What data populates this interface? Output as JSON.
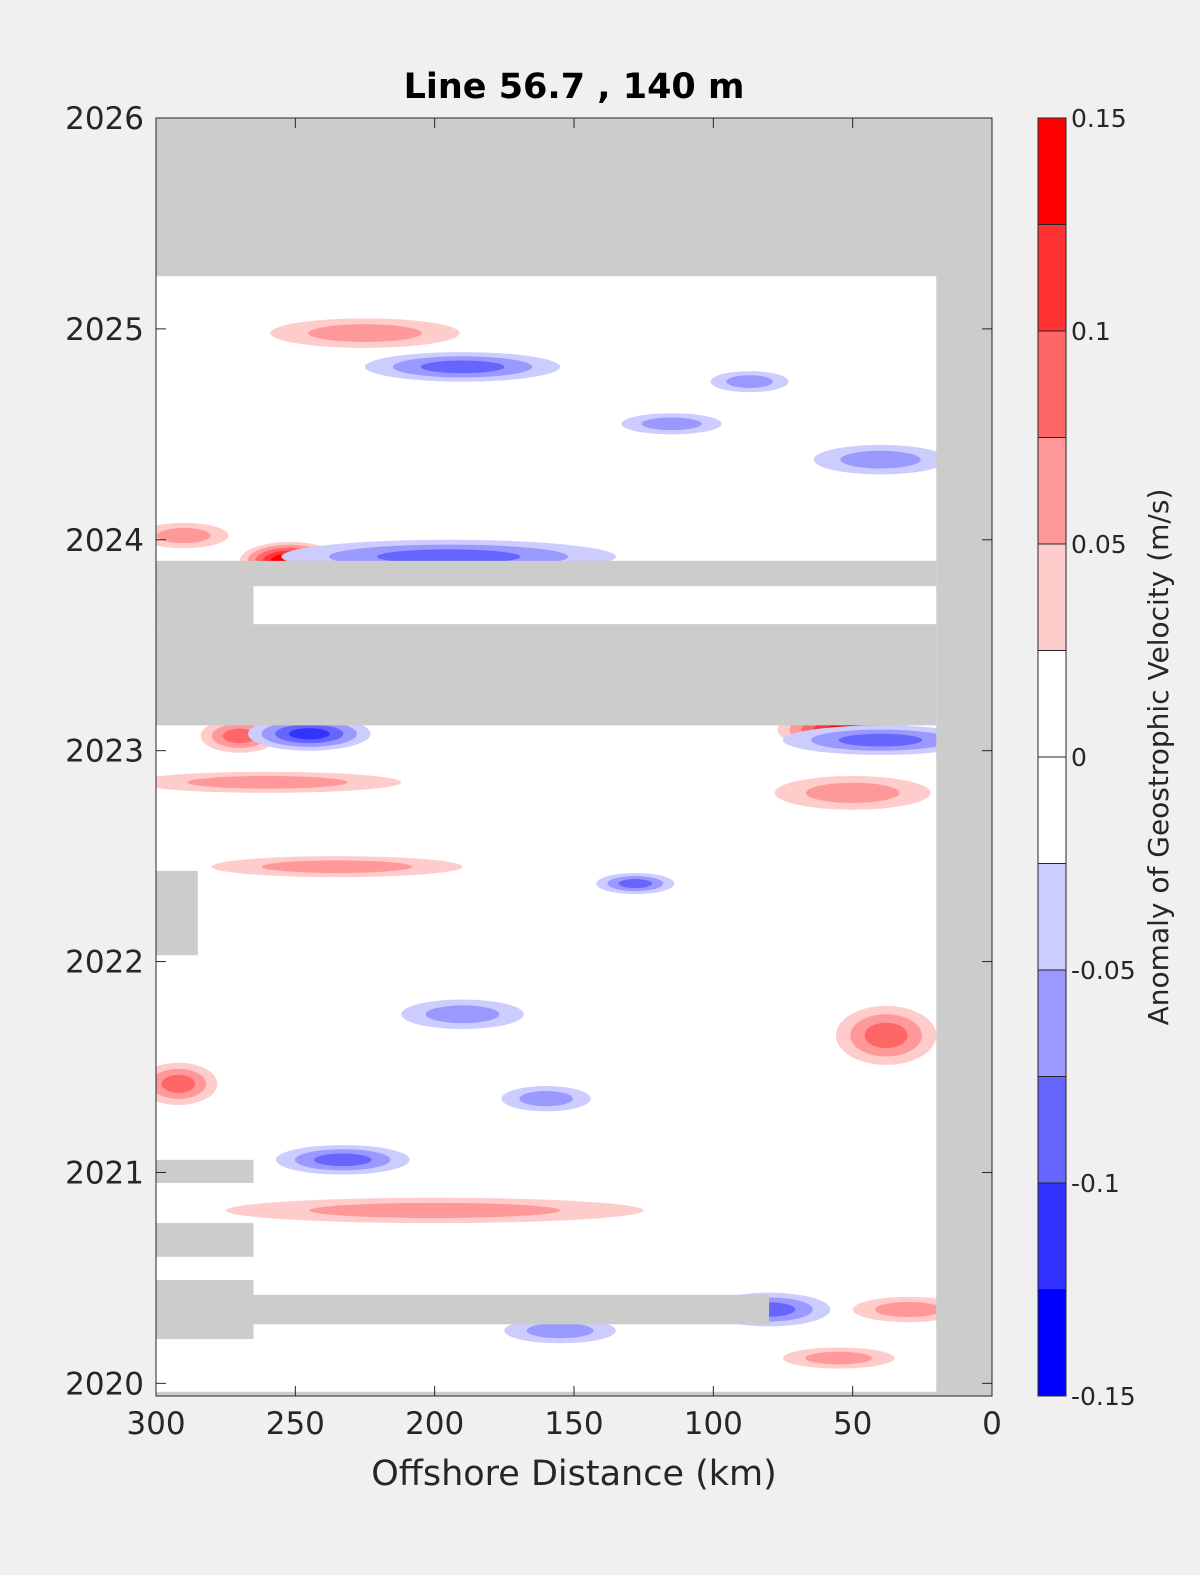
{
  "chart_data": {
    "type": "heatmap",
    "subtype": "filled-contour (Hovmoller diagram)",
    "title": "Line 56.7 , 140 m",
    "xlabel": "Offshore Distance (km)",
    "ylabel": "",
    "xlim": [
      300,
      0
    ],
    "x_reversed": true,
    "ylim": [
      2019.92,
      2026
    ],
    "x_ticks": [
      300,
      250,
      200,
      150,
      100,
      50,
      0
    ],
    "y_ticks": [
      2020,
      2021,
      2022,
      2023,
      2024,
      2025,
      2026
    ],
    "x_tick_labels": [
      "300",
      "250",
      "200",
      "150",
      "100",
      "50",
      "0"
    ],
    "y_tick_labels": [
      "2020",
      "2021",
      "2022",
      "2023",
      "2024",
      "2025",
      "2026"
    ],
    "colorbar": {
      "label": "Anomaly of Geostrophic Velocity (m/s)",
      "range": [
        -0.15,
        0.15
      ],
      "levels": [
        -0.15,
        -0.125,
        -0.1,
        -0.075,
        -0.05,
        -0.025,
        0,
        0.025,
        0.05,
        0.075,
        0.1,
        0.125,
        0.15
      ],
      "colors": [
        "#0000ff",
        "#3333ff",
        "#6666ff",
        "#9999ff",
        "#ccccff",
        "#ffffff",
        "#ffffff",
        "#ffcccc",
        "#ff9999",
        "#ff6666",
        "#ff3333",
        "#ff0000"
      ],
      "tick_values": [
        -0.15,
        -0.1,
        -0.05,
        0,
        0.05,
        0.1,
        0.15
      ],
      "tick_labels": [
        "-0.15",
        "-0.1",
        "-0.05",
        "0",
        "0.05",
        "0.1",
        "0.15"
      ]
    },
    "missing_data_color": "#cccccc",
    "missing_regions": [
      {
        "x0": 300,
        "x1": 0,
        "y0": 2025.25,
        "y1": 2026
      },
      {
        "x0": 20,
        "x1": 0,
        "y0": 2019.92,
        "y1": 2026
      },
      {
        "x0": 300,
        "x1": 20,
        "y0": 2023.12,
        "y1": 2023.6
      },
      {
        "x0": 300,
        "x1": 20,
        "y0": 2023.78,
        "y1": 2023.9
      },
      {
        "x0": 300,
        "x1": 265,
        "y0": 2023.6,
        "y1": 2023.78
      },
      {
        "x0": 300,
        "x1": 285,
        "y0": 2022.03,
        "y1": 2022.43
      },
      {
        "x0": 300,
        "x1": 265,
        "y0": 2020.95,
        "y1": 2021.06
      },
      {
        "x0": 300,
        "x1": 265,
        "y0": 2020.6,
        "y1": 2020.76
      },
      {
        "x0": 300,
        "x1": 265,
        "y0": 2020.21,
        "y1": 2020.49
      },
      {
        "x0": 265,
        "x1": 80,
        "y0": 2020.28,
        "y1": 2020.42
      },
      {
        "x0": 300,
        "x1": 20,
        "y0": 2019.92,
        "y1": 2019.96
      }
    ],
    "anomaly_features": [
      {
        "x": 252,
        "y": 2023.9,
        "rx": 18,
        "ry": 0.09,
        "value": 0.15
      },
      {
        "x": 53,
        "y": 2023.1,
        "rx": 24,
        "ry": 0.1,
        "value": 0.125
      },
      {
        "x": 270,
        "y": 2023.07,
        "rx": 14,
        "ry": 0.08,
        "value": 0.075
      },
      {
        "x": 292,
        "y": 2021.42,
        "rx": 14,
        "ry": 0.1,
        "value": 0.075
      },
      {
        "x": 38,
        "y": 2021.65,
        "rx": 18,
        "ry": 0.14,
        "value": 0.075
      },
      {
        "x": 225,
        "y": 2024.98,
        "rx": 34,
        "ry": 0.07,
        "value": 0.05
      },
      {
        "x": 290,
        "y": 2024.02,
        "rx": 16,
        "ry": 0.06,
        "value": 0.05
      },
      {
        "x": 200,
        "y": 2020.82,
        "rx": 75,
        "ry": 0.06,
        "value": 0.05
      },
      {
        "x": 235,
        "y": 2022.45,
        "rx": 45,
        "ry": 0.05,
        "value": 0.05
      },
      {
        "x": 260,
        "y": 2022.85,
        "rx": 48,
        "ry": 0.05,
        "value": 0.05
      },
      {
        "x": 50,
        "y": 2022.8,
        "rx": 28,
        "ry": 0.08,
        "value": 0.05
      },
      {
        "x": 55,
        "y": 2020.12,
        "rx": 20,
        "ry": 0.05,
        "value": 0.05
      },
      {
        "x": 30,
        "y": 2020.35,
        "rx": 20,
        "ry": 0.06,
        "value": 0.05
      },
      {
        "x": 190,
        "y": 2024.82,
        "rx": 35,
        "ry": 0.07,
        "value": -0.075
      },
      {
        "x": 195,
        "y": 2023.92,
        "rx": 60,
        "ry": 0.08,
        "value": -0.075
      },
      {
        "x": 245,
        "y": 2023.08,
        "rx": 22,
        "ry": 0.08,
        "value": -0.1
      },
      {
        "x": 40,
        "y": 2023.05,
        "rx": 35,
        "ry": 0.07,
        "value": -0.075
      },
      {
        "x": 233,
        "y": 2021.06,
        "rx": 24,
        "ry": 0.07,
        "value": -0.075
      },
      {
        "x": 128,
        "y": 2022.37,
        "rx": 14,
        "ry": 0.05,
        "value": -0.075
      },
      {
        "x": 80,
        "y": 2020.35,
        "rx": 22,
        "ry": 0.08,
        "value": -0.075
      },
      {
        "x": 87,
        "y": 2024.75,
        "rx": 14,
        "ry": 0.05,
        "value": -0.05
      },
      {
        "x": 40,
        "y": 2024.38,
        "rx": 24,
        "ry": 0.07,
        "value": -0.05
      },
      {
        "x": 115,
        "y": 2024.55,
        "rx": 18,
        "ry": 0.05,
        "value": -0.05
      },
      {
        "x": 190,
        "y": 2021.75,
        "rx": 22,
        "ry": 0.07,
        "value": -0.05
      },
      {
        "x": 160,
        "y": 2021.35,
        "rx": 16,
        "ry": 0.06,
        "value": -0.05
      },
      {
        "x": 155,
        "y": 2020.25,
        "rx": 20,
        "ry": 0.06,
        "value": -0.05
      }
    ],
    "grid": false,
    "legend": "colorbar-right"
  }
}
